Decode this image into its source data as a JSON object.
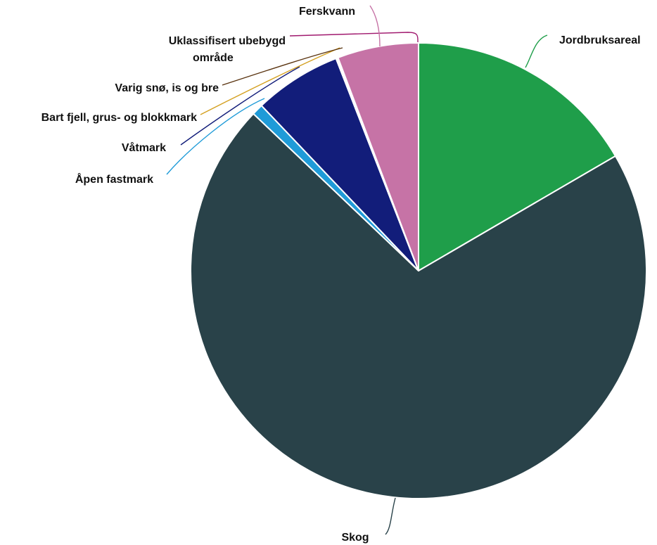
{
  "chart_data": {
    "type": "pie",
    "title": "",
    "slices": [
      {
        "label": "Jordbruksareal",
        "value": 16.6,
        "color": "#1f9e4a"
      },
      {
        "label": "Skog",
        "value": 70.5,
        "color": "#294249"
      },
      {
        "label": "Åpen fastmark",
        "value": 0.8,
        "color": "#1f9bd8"
      },
      {
        "label": "Våtmark",
        "value": 6.2,
        "color": "#121d7a"
      },
      {
        "label": "Bart fjell, grus- og blokkmark",
        "value": 0.05,
        "color": "#d4a020"
      },
      {
        "label": "Varig snø, is og bre",
        "value": 0.05,
        "color": "#5a3410"
      },
      {
        "label": "Uklassifisert ubebygd område",
        "value": 0.05,
        "color": "#a0196e"
      },
      {
        "label": "Ferskvann",
        "value": 5.75,
        "color": "#c673a6"
      }
    ]
  }
}
